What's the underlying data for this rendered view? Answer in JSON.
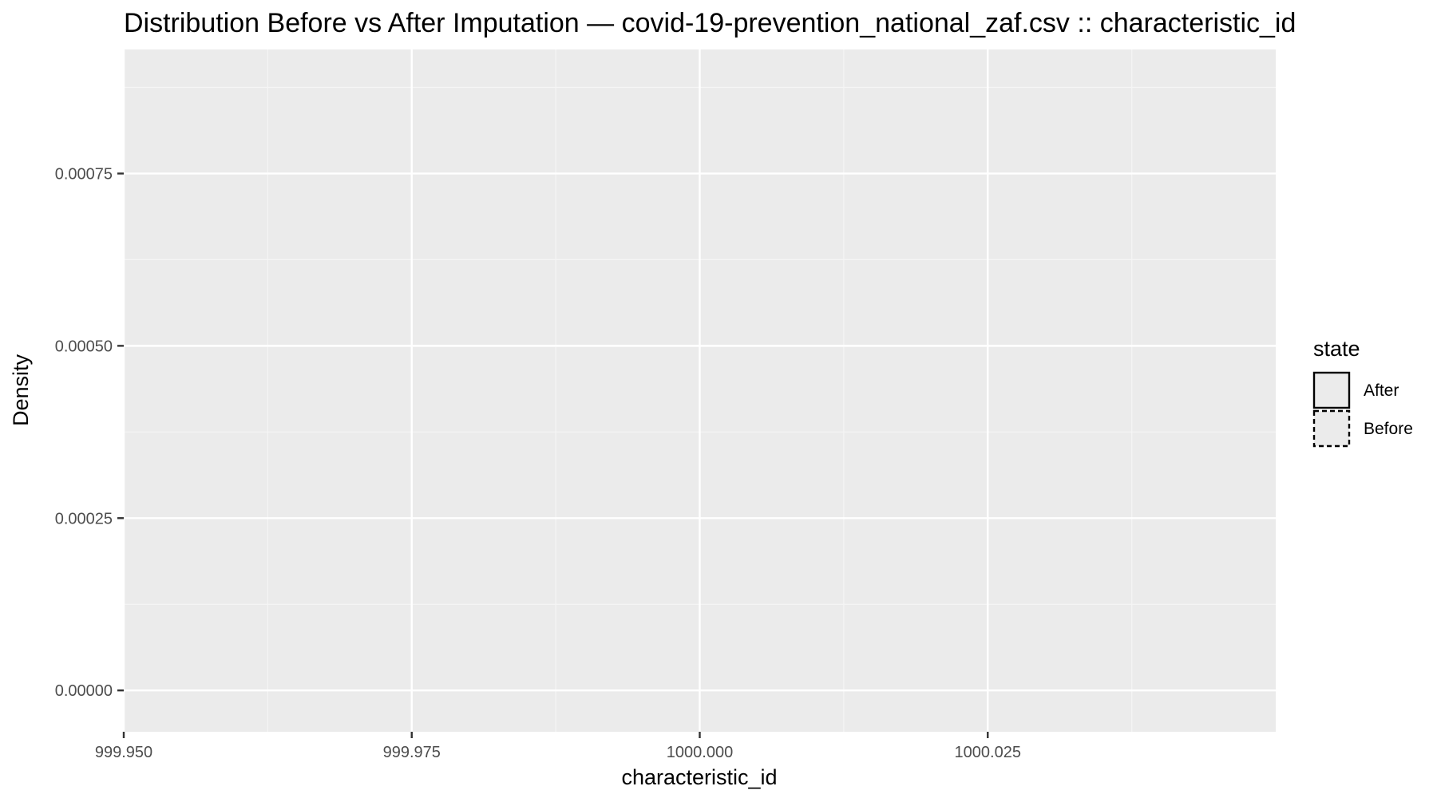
{
  "chart_data": {
    "type": "area",
    "title": "Distribution Before vs After Imputation — covid-19-prevention_national_zaf.csv :: characteristic_id",
    "xlabel": "characteristic_id",
    "ylabel": "Density",
    "xlim": [
      999.95,
      1000.05
    ],
    "ylim": [
      -6e-05,
      0.00093
    ],
    "x_ticks": [
      {
        "value": 999.95,
        "label": "999.950"
      },
      {
        "value": 999.975,
        "label": "999.975"
      },
      {
        "value": 1000.0,
        "label": "1000.000"
      },
      {
        "value": 1000.025,
        "label": "1000.025"
      }
    ],
    "x_minor_ticks": [
      999.9625,
      999.9875,
      1000.0125,
      1000.0375
    ],
    "y_ticks": [
      {
        "value": 0.0,
        "label": "0.00000"
      },
      {
        "value": 0.00025,
        "label": "0.00025"
      },
      {
        "value": 0.0005,
        "label": "0.00050"
      },
      {
        "value": 0.00075,
        "label": "0.00075"
      }
    ],
    "y_minor_ticks": [
      0.000125,
      0.000375,
      0.000625,
      0.000875
    ],
    "grid": true,
    "legend": {
      "title": "state",
      "position": "right",
      "entries": [
        {
          "label": "After",
          "linetype": "solid"
        },
        {
          "label": "Before",
          "linetype": "dashed"
        }
      ]
    },
    "series": [
      {
        "name": "After",
        "x": [],
        "y": []
      },
      {
        "name": "Before",
        "x": [],
        "y": []
      }
    ],
    "colors": {
      "panel": "#ebebeb",
      "grid_major": "#ffffff",
      "grid_minor": "#f5f5f5",
      "tick_text": "#4d4d4d",
      "axis_tick": "#333333",
      "legend_fill": "#ebebeb",
      "legend_stroke": "#000000"
    }
  }
}
